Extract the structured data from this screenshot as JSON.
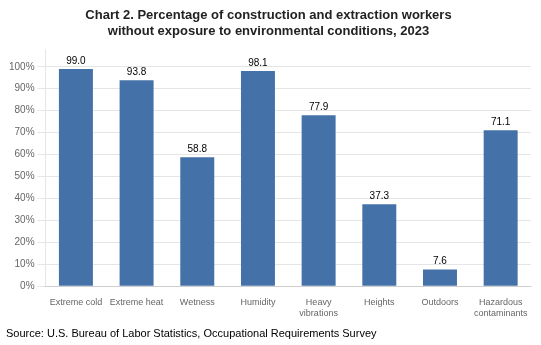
{
  "chart_data": {
    "type": "bar",
    "title": "Chart 2. Percentage of construction and extraction workers\nwithout exposure to environmental conditions, 2023",
    "categories": [
      "Extreme cold",
      "Extreme heat",
      "Wetness",
      "Humidity",
      "Heavy\nvibrations",
      "Heights",
      "Outdoors",
      "Hazardous\ncontaminants"
    ],
    "values": [
      99.0,
      93.8,
      58.8,
      98.1,
      77.9,
      37.3,
      7.6,
      71.1
    ],
    "value_labels": [
      "99.0",
      "93.8",
      "58.8",
      "98.1",
      "77.9",
      "37.3",
      "7.6",
      "71.1"
    ],
    "data_labels": true,
    "color": "#4472A8",
    "ylim": [
      0,
      108
    ],
    "yticks": [
      {
        "value": 0,
        "label": "0%"
      },
      {
        "value": 10,
        "label": "10%"
      },
      {
        "value": 20,
        "label": "20%"
      },
      {
        "value": 30,
        "label": "30%"
      },
      {
        "value": 40,
        "label": "40%"
      },
      {
        "value": 50,
        "label": "50%"
      },
      {
        "value": 60,
        "label": "60%"
      },
      {
        "value": 70,
        "label": "70%"
      },
      {
        "value": 80,
        "label": "80%"
      },
      {
        "value": 90,
        "label": "90%"
      },
      {
        "value": 100,
        "label": "100%"
      }
    ],
    "grid": true,
    "source": "Source: U.S. Bureau of Labor Statistics, Occupational Requirements Survey"
  }
}
